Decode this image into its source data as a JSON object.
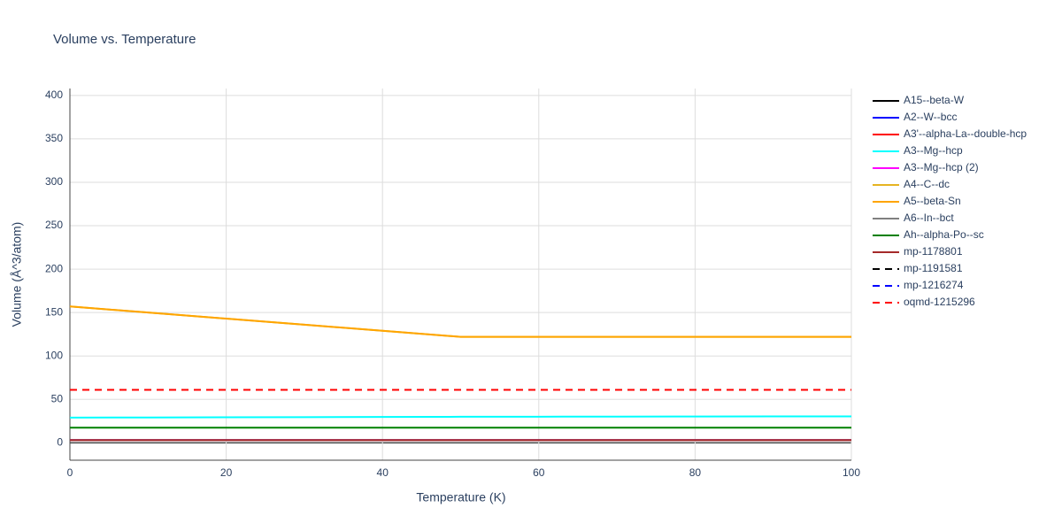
{
  "chart_data": {
    "type": "line",
    "title": "Volume vs. Temperature",
    "x_label": "Temperature (K)",
    "y_label": "Volume (Å^3/atom)",
    "x": [
      0,
      10,
      20,
      30,
      40,
      50,
      60,
      70,
      80,
      90,
      100
    ],
    "xlim": [
      0,
      100
    ],
    "xticks": [
      0,
      20,
      40,
      60,
      80,
      100
    ],
    "ylim": [
      -20,
      408
    ],
    "yticks": [
      0,
      50,
      100,
      150,
      200,
      250,
      300,
      350,
      400
    ],
    "grid": true,
    "legend": "right",
    "series": [
      {
        "name": "A15--beta-W",
        "color": "#000000",
        "dash": "solid",
        "values": [
          3,
          3,
          3,
          3,
          3,
          3,
          3,
          3,
          3,
          3,
          3
        ]
      },
      {
        "name": "A2--W--bcc",
        "color": "#0000ff",
        "dash": "solid",
        "values": [
          3,
          3,
          3,
          3,
          3,
          3,
          3,
          3,
          3,
          3,
          3
        ]
      },
      {
        "name": "A3'--alpha-La--double-hcp",
        "color": "#ff0000",
        "dash": "solid",
        "values": [
          3,
          3,
          3,
          3,
          3,
          3,
          3,
          3,
          3,
          3,
          3
        ]
      },
      {
        "name": "A3--Mg--hcp",
        "color": "#00ffff",
        "dash": "solid",
        "values": [
          29,
          29.2,
          29.4,
          29.6,
          29.8,
          30,
          30.1,
          30.2,
          30.3,
          30.4,
          30.5
        ]
      },
      {
        "name": "A3--Mg--hcp (2)",
        "color": "#ff00ff",
        "dash": "solid",
        "values": [
          3,
          3,
          3,
          3,
          3,
          3,
          3,
          3,
          3,
          3,
          3
        ]
      },
      {
        "name": "A4--C--dc",
        "color": "#e6b422",
        "dash": "solid",
        "values": [
          157,
          150,
          143,
          136,
          129,
          122,
          122,
          122,
          122,
          122,
          122
        ]
      },
      {
        "name": "A5--beta-Sn",
        "color": "#ffa500",
        "dash": "solid",
        "values": [
          157,
          150,
          143,
          136,
          129,
          122,
          122,
          122,
          122,
          122,
          122
        ]
      },
      {
        "name": "A6--In--bct",
        "color": "#808080",
        "dash": "solid",
        "values": [
          3,
          3,
          3,
          3,
          3,
          3,
          3,
          3,
          3,
          3,
          3
        ]
      },
      {
        "name": "Ah--alpha-Po--sc",
        "color": "#008000",
        "dash": "solid",
        "values": [
          17.5,
          17.5,
          17.5,
          17.5,
          17.5,
          17.5,
          17.5,
          17.5,
          17.5,
          17.5,
          17.5
        ]
      },
      {
        "name": "mp-1178801",
        "color": "#a52a2a",
        "dash": "solid",
        "values": [
          3,
          3,
          3,
          3,
          3,
          3,
          3,
          3,
          3,
          3,
          3
        ]
      },
      {
        "name": "mp-1191581",
        "color": "#000000",
        "dash": "dash",
        "values": [
          61,
          61,
          61,
          61,
          61,
          61,
          61,
          61,
          61,
          61,
          61
        ]
      },
      {
        "name": "mp-1216274",
        "color": "#0000ff",
        "dash": "dash",
        "values": [
          61,
          61,
          61,
          61,
          61,
          61,
          61,
          61,
          61,
          61,
          61
        ]
      },
      {
        "name": "oqmd-1215296",
        "color": "#ff0000",
        "dash": "dash",
        "values": [
          61,
          61,
          61,
          61,
          61,
          61,
          61,
          61,
          61,
          61,
          61
        ]
      }
    ]
  }
}
